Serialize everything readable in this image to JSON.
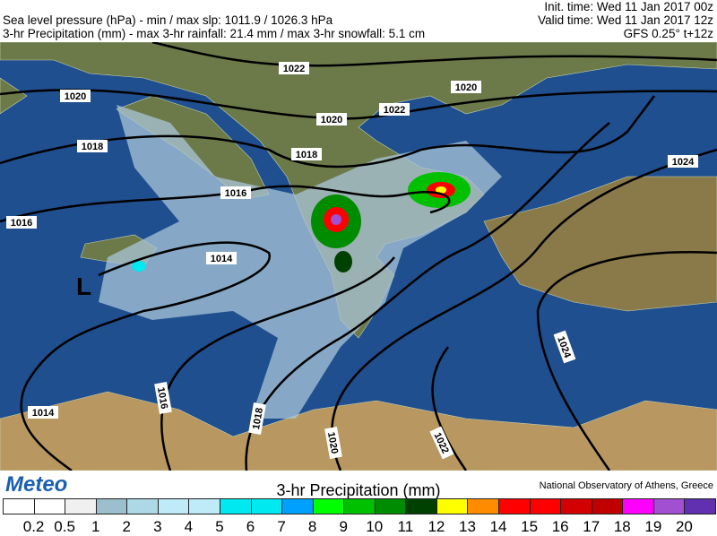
{
  "header": {
    "line1": "Sea level pressure (hPa) - min / max slp: 1011.9 / 1026.3 hPa",
    "line2": "3-hr Precipitation (mm)  - max 3-hr rainfall: 21.4 mm / max 3-hr snowfall: 5.1 cm",
    "init_time": "Init. time: Wed 11 Jan 2017 00z",
    "valid_time": "Valid time: Wed 11 Jan 2017 12z",
    "model": "GFS 0.25° t+12z"
  },
  "map": {
    "low_marker": "L",
    "isobar_labels": [
      "1022",
      "1020",
      "1020",
      "1020",
      "1018",
      "1018",
      "1016",
      "1016",
      "1014",
      "1014",
      "1016",
      "1018",
      "1020",
      "1022",
      "1022",
      "1024",
      "1024"
    ]
  },
  "footer": {
    "logo": "Meteo",
    "legend_title": "3-hr Precipitation (mm)",
    "credit": "National Observatory of Athens, Greece",
    "ticks": [
      "0.2",
      "0.5",
      "1",
      "2",
      "3",
      "4",
      "5",
      "6",
      "7",
      "8",
      "9",
      "10",
      "11",
      "12",
      "13",
      "14",
      "15",
      "16",
      "17",
      "18",
      "19",
      "20"
    ],
    "colors": [
      "#ffffff",
      "#ffffff",
      "#f0f0f0",
      "#9bbfcc",
      "#add8e6",
      "#bfeaf8",
      "#bfeaf8",
      "#00e8f0",
      "#00e8f0",
      "#00a0ff",
      "#00ff00",
      "#00c000",
      "#008c00",
      "#004000",
      "#ffff00",
      "#ff8c00",
      "#ff0000",
      "#ff0000",
      "#d20000",
      "#c00000",
      "#ff00ff",
      "#a050d0",
      "#6030b0"
    ]
  }
}
